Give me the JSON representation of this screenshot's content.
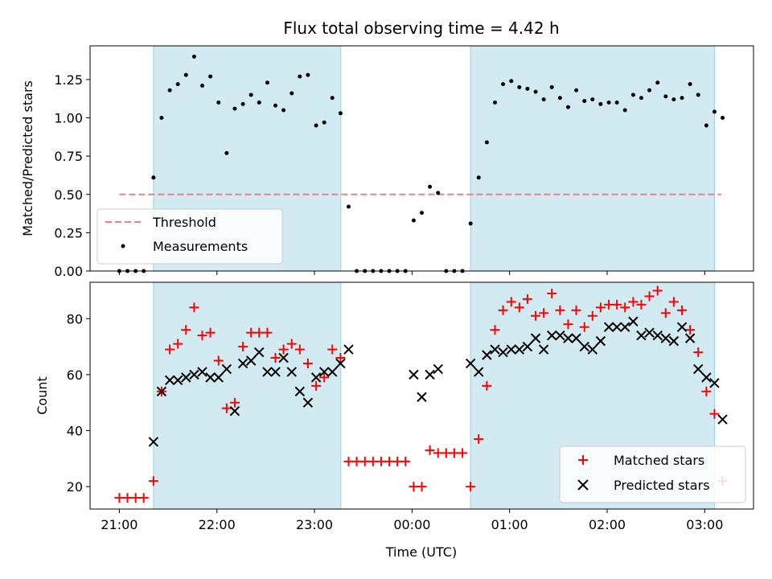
{
  "chart_data": [
    {
      "type": "scatter",
      "title": "Flux total observing time = 4.42 h",
      "xlabel": "",
      "ylabel": "Matched/Predicted stars",
      "ylim": [
        0,
        1.47
      ],
      "yticks": [
        0.0,
        0.25,
        0.5,
        0.75,
        1.0,
        1.25
      ],
      "ytick_labels": [
        "0.00",
        "0.25",
        "0.50",
        "0.75",
        "1.00",
        "1.25"
      ],
      "xlim": [
        -0.3,
        6.5
      ],
      "threshold": {
        "name": "Threshold",
        "value": 0.5,
        "x_range": [
          0.0,
          6.17
        ],
        "color": "#f08080"
      },
      "shaded_regions": [
        [
          0.35,
          2.27
        ],
        [
          3.6,
          6.1
        ]
      ],
      "legend": {
        "placement": "lower-left",
        "entries": [
          "Threshold",
          "Measurements"
        ]
      },
      "series": [
        {
          "name": "Measurements",
          "color": "#000000",
          "x": [
            0.0,
            0.083,
            0.167,
            0.25,
            0.35,
            0.433,
            0.517,
            0.6,
            0.683,
            0.767,
            0.85,
            0.933,
            1.017,
            1.1,
            1.183,
            1.267,
            1.35,
            1.433,
            1.517,
            1.6,
            1.683,
            1.767,
            1.85,
            1.933,
            2.017,
            2.1,
            2.183,
            2.267,
            2.35,
            2.433,
            2.517,
            2.6,
            2.683,
            2.767,
            2.85,
            2.933,
            3.017,
            3.1,
            3.183,
            3.267,
            3.35,
            3.433,
            3.517,
            3.6,
            3.683,
            3.767,
            3.85,
            3.933,
            4.017,
            4.1,
            4.183,
            4.267,
            4.35,
            4.433,
            4.517,
            4.6,
            4.683,
            4.767,
            4.85,
            4.933,
            5.017,
            5.1,
            5.183,
            5.267,
            5.35,
            5.433,
            5.517,
            5.6,
            5.683,
            5.767,
            5.85,
            5.933,
            6.017,
            6.1,
            6.183
          ],
          "y": [
            0.0,
            0.0,
            0.0,
            0.0,
            0.61,
            1.0,
            1.18,
            1.22,
            1.28,
            1.4,
            1.21,
            1.27,
            1.1,
            0.77,
            1.06,
            1.09,
            1.15,
            1.1,
            1.23,
            1.08,
            1.05,
            1.16,
            1.27,
            1.28,
            0.95,
            0.97,
            1.13,
            1.03,
            0.42,
            0.0,
            0.0,
            0.0,
            0.0,
            0.0,
            0.0,
            0.0,
            0.33,
            0.38,
            0.55,
            0.51,
            0.0,
            0.0,
            0.0,
            0.31,
            0.61,
            0.84,
            1.1,
            1.22,
            1.24,
            1.2,
            1.19,
            1.17,
            1.12,
            1.2,
            1.13,
            1.07,
            1.18,
            1.11,
            1.12,
            1.09,
            1.1,
            1.1,
            1.05,
            1.15,
            1.13,
            1.18,
            1.23,
            1.14,
            1.12,
            1.13,
            1.22,
            1.15,
            0.95,
            1.04,
            1.0
          ]
        }
      ]
    },
    {
      "type": "scatter",
      "title": "",
      "xlabel": "Time (UTC)",
      "ylabel": "Count",
      "ylim": [
        12,
        93
      ],
      "yticks": [
        20,
        40,
        60,
        80
      ],
      "ytick_labels": [
        "20",
        "40",
        "60",
        "80"
      ],
      "xlim": [
        -0.3,
        6.5
      ],
      "xticks": [
        0,
        1,
        2,
        3,
        4,
        5,
        6
      ],
      "xtick_labels": [
        "21:00",
        "22:00",
        "23:00",
        "00:00",
        "01:00",
        "02:00",
        "03:00"
      ],
      "shaded_regions": [
        [
          0.35,
          2.27
        ],
        [
          3.6,
          6.1
        ]
      ],
      "legend": {
        "placement": "lower-right",
        "entries": [
          "Matched stars",
          "Predicted stars"
        ]
      },
      "series": [
        {
          "name": "Matched stars",
          "marker": "plus",
          "color": "#ff0000",
          "x": [
            0.0,
            0.083,
            0.167,
            0.25,
            0.35,
            0.433,
            0.517,
            0.6,
            0.683,
            0.767,
            0.85,
            0.933,
            1.017,
            1.1,
            1.183,
            1.267,
            1.35,
            1.433,
            1.517,
            1.6,
            1.683,
            1.767,
            1.85,
            1.933,
            2.017,
            2.1,
            2.183,
            2.267,
            2.35,
            2.433,
            2.517,
            2.6,
            2.683,
            2.767,
            2.85,
            2.933,
            3.017,
            3.1,
            3.183,
            3.267,
            3.35,
            3.433,
            3.517,
            3.6,
            3.683,
            3.767,
            3.85,
            3.933,
            4.017,
            4.1,
            4.183,
            4.267,
            4.35,
            4.433,
            4.517,
            4.6,
            4.683,
            4.767,
            4.85,
            4.933,
            5.017,
            5.1,
            5.183,
            5.267,
            5.35,
            5.433,
            5.517,
            5.6,
            5.683,
            5.767,
            5.85,
            5.933,
            6.017,
            6.1,
            6.183
          ],
          "y": [
            16,
            16,
            16,
            16,
            22,
            54,
            69,
            71,
            76,
            84,
            74,
            75,
            65,
            48,
            50,
            70,
            75,
            75,
            75,
            66,
            69,
            71,
            69,
            64,
            56,
            59,
            69,
            66,
            29,
            29,
            29,
            29,
            29,
            29,
            29,
            29,
            20,
            20,
            33,
            32,
            32,
            32,
            32,
            20,
            37,
            56,
            76,
            83,
            86,
            84,
            87,
            81,
            82,
            89,
            83,
            78,
            83,
            77,
            81,
            84,
            85,
            85,
            84,
            86,
            85,
            88,
            90,
            82,
            86,
            83,
            76,
            68,
            54,
            46,
            22
          ]
        },
        {
          "name": "Predicted stars",
          "marker": "x",
          "color": "#000000",
          "x": [
            0.35,
            0.433,
            0.517,
            0.6,
            0.683,
            0.767,
            0.85,
            0.933,
            1.017,
            1.1,
            1.183,
            1.267,
            1.35,
            1.433,
            1.517,
            1.6,
            1.683,
            1.767,
            1.85,
            1.933,
            2.017,
            2.1,
            2.183,
            2.267,
            2.35,
            3.017,
            3.1,
            3.183,
            3.267,
            3.6,
            3.683,
            3.767,
            3.85,
            3.933,
            4.017,
            4.1,
            4.183,
            4.267,
            4.35,
            4.433,
            4.517,
            4.6,
            4.683,
            4.767,
            4.85,
            4.933,
            5.017,
            5.1,
            5.183,
            5.267,
            5.35,
            5.433,
            5.517,
            5.6,
            5.683,
            5.767,
            5.85,
            5.933,
            6.017,
            6.1,
            6.183
          ],
          "y": [
            36,
            54,
            58,
            58,
            59,
            60,
            61,
            59,
            59,
            62,
            47,
            64,
            65,
            68,
            61,
            61,
            66,
            61,
            54,
            50,
            59,
            61,
            61,
            64,
            69,
            60,
            52,
            60,
            62,
            64,
            61,
            67,
            69,
            68,
            69,
            69,
            70,
            73,
            69,
            74,
            74,
            73,
            73,
            70,
            69,
            72,
            77,
            77,
            77,
            79,
            74,
            75,
            74,
            73,
            72,
            77,
            73,
            62,
            59,
            57,
            44
          ]
        }
      ]
    }
  ]
}
